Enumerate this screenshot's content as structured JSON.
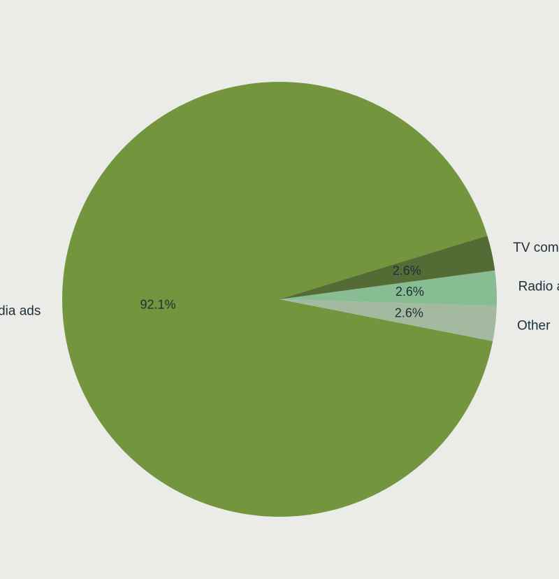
{
  "chart_data": {
    "type": "pie",
    "title": "",
    "slices": [
      {
        "label": "Social media ads",
        "value": 92.1,
        "pct_text": "92.1%",
        "color": "#72953d"
      },
      {
        "label": "Other",
        "value": 2.6,
        "pct_text": "2.6%",
        "color": "#a3b9a0"
      },
      {
        "label": "Radio ads",
        "value": 2.6,
        "pct_text": "2.6%",
        "color": "#88bd94"
      },
      {
        "label": "TV commercials",
        "value": 2.6,
        "pct_text": "2.6%",
        "color": "#556b35"
      }
    ],
    "start_angle_deg": 17,
    "direction": "counterclockwise",
    "legend": "none"
  }
}
